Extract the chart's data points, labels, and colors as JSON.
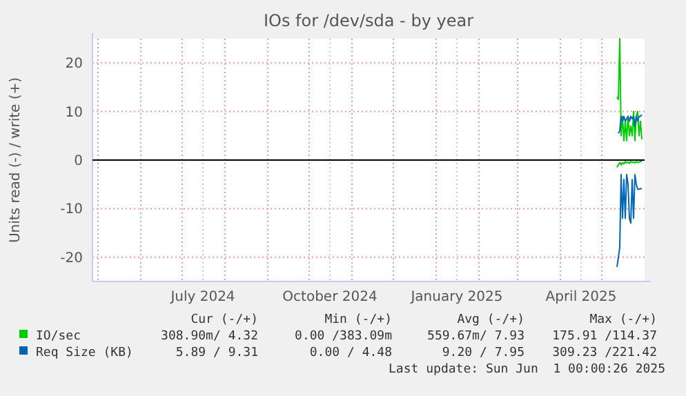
{
  "chart_data": {
    "type": "line",
    "title": "IOs for /dev/sda - by year",
    "ylabel": "Units read (-) / write (+)",
    "xlim": [
      "2024-04-27",
      "2025-06-01"
    ],
    "ylim": [
      -25,
      25
    ],
    "yticks": [
      -20,
      -10,
      0,
      10,
      20
    ],
    "xticks": [
      {
        "value": "2024-05-01",
        "label": null
      },
      {
        "value": "2024-06-01",
        "label": null
      },
      {
        "value": "2024-07-01",
        "label": null
      },
      {
        "value": "2024-07-16",
        "label": "July 2024"
      },
      {
        "value": "2024-08-01",
        "label": null
      },
      {
        "value": "2024-09-01",
        "label": null
      },
      {
        "value": "2024-10-01",
        "label": null
      },
      {
        "value": "2024-10-16",
        "label": "October 2024"
      },
      {
        "value": "2024-11-01",
        "label": null
      },
      {
        "value": "2024-12-01",
        "label": null
      },
      {
        "value": "2025-01-01",
        "label": null
      },
      {
        "value": "2025-01-16",
        "label": "January 2025"
      },
      {
        "value": "2025-02-01",
        "label": null
      },
      {
        "value": "2025-03-01",
        "label": null
      },
      {
        "value": "2025-04-01",
        "label": null
      },
      {
        "value": "2025-04-16",
        "label": "April 2025"
      },
      {
        "value": "2025-05-01",
        "label": null
      }
    ],
    "grid": true,
    "legend": "bottom",
    "ref_lines": [
      {
        "axis": "y",
        "value": 0,
        "color": "#000000"
      }
    ],
    "x": [
      "2025-05-12",
      "2025-05-13",
      "2025-05-14",
      "2025-05-15",
      "2025-05-16",
      "2025-05-17",
      "2025-05-18",
      "2025-05-19",
      "2025-05-20",
      "2025-05-21",
      "2025-05-22",
      "2025-05-23",
      "2025-05-24",
      "2025-05-25",
      "2025-05-26",
      "2025-05-27",
      "2025-05-28",
      "2025-05-29",
      "2025-05-30"
    ],
    "series": [
      {
        "name": "IO/sec",
        "color": "#00cc00",
        "values": [
          13,
          12.5,
          25,
          5,
          9,
          4,
          8,
          4,
          9,
          5,
          7,
          5,
          10,
          4,
          9,
          10,
          5,
          8,
          4.3
        ]
      },
      {
        "color": "#00cc00",
        "values": [
          -1.5,
          -1,
          -0.5,
          -1,
          -0.5,
          -0.8,
          -0.3,
          -0.6,
          -0.4,
          -0.7,
          -0.3,
          -0.5,
          -0.4,
          -0.6,
          -0.3,
          -0.5,
          -0.4,
          -0.3,
          -0.3
        ]
      },
      {
        "name": "Req Size (KB)",
        "color": "#0066b3",
        "values": [
          null,
          5.5,
          6,
          9,
          8,
          9,
          8,
          8.5,
          9,
          8,
          9,
          8.5,
          9,
          7,
          9,
          8,
          9,
          9,
          9.3
        ]
      },
      {
        "color": "#0066b3",
        "values": [
          -22,
          -20,
          -18,
          -3,
          -12,
          -4,
          -12,
          -3,
          -5,
          -12,
          -13,
          -4,
          -12,
          -3,
          -5,
          -6,
          -6,
          -5.9,
          -5.9
        ]
      }
    ],
    "annotations": [
      "Cur (-/+)",
      "Min (-/+)",
      "Avg (-/+)",
      "Max (-/+)",
      "308.90m/ 4.32",
      "0.00 /383.09m",
      "559.67m/ 7.93",
      "175.91 /114.37",
      "5.89 / 9.31",
      "0.00 / 4.48",
      "9.20 / 7.95",
      "309.23 /221.42",
      "Last update: Sun Jun  1 00:00:26 2025"
    ]
  }
}
